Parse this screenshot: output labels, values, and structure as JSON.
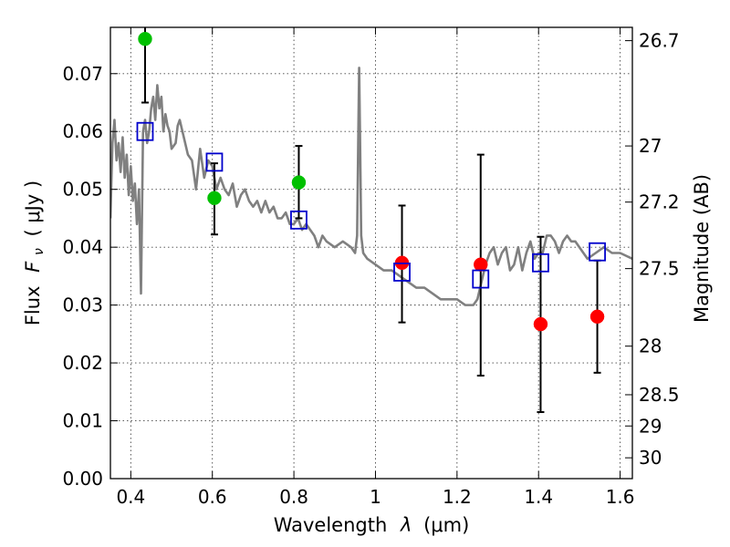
{
  "chart_data": {
    "type": "scatter",
    "xlabel_text": "Wavelength",
    "xlabel_math": "λ",
    "xlabel_unit": "(μm)",
    "ylabel_text": "Flux",
    "ylabel_math": "F",
    "ylabel_sub": "ν",
    "ylabel_unit": "( μJy )",
    "y2label": "Magnitude (AB)",
    "xlim": [
      0.35,
      1.63
    ],
    "ylim": [
      0.0,
      0.078
    ],
    "grid": true,
    "x_ticks": [
      0.4,
      0.6,
      0.8,
      1.0,
      1.2,
      1.4,
      1.6
    ],
    "x_tick_labels": [
      "0.4",
      "0.6",
      "0.8",
      "1",
      "1.2",
      "1.4",
      "1.6"
    ],
    "y_ticks": [
      0.0,
      0.01,
      0.02,
      0.03,
      0.04,
      0.05,
      0.06,
      0.07
    ],
    "y_tick_labels": [
      "0.00",
      "0.01",
      "0.02",
      "0.03",
      "0.04",
      "0.05",
      "0.06",
      "0.07"
    ],
    "y2_ticks": [
      {
        "label": "26.7",
        "flux": 0.0757
      },
      {
        "label": "27",
        "flux": 0.0575
      },
      {
        "label": "27.2",
        "flux": 0.0478
      },
      {
        "label": "27.5",
        "flux": 0.0363
      },
      {
        "label": "28",
        "flux": 0.0229
      },
      {
        "label": "28.5",
        "flux": 0.0145
      },
      {
        "label": "29",
        "flux": 0.0091
      },
      {
        "label": "30",
        "flux": 0.0036
      }
    ],
    "template_spectrum": {
      "color": "#808080",
      "x": [
        0.35,
        0.355,
        0.36,
        0.365,
        0.37,
        0.375,
        0.38,
        0.385,
        0.39,
        0.395,
        0.4,
        0.405,
        0.41,
        0.415,
        0.42,
        0.425,
        0.43,
        0.435,
        0.44,
        0.445,
        0.45,
        0.455,
        0.46,
        0.465,
        0.47,
        0.475,
        0.48,
        0.485,
        0.49,
        0.495,
        0.5,
        0.51,
        0.515,
        0.52,
        0.53,
        0.54,
        0.55,
        0.56,
        0.57,
        0.58,
        0.59,
        0.6,
        0.61,
        0.62,
        0.63,
        0.64,
        0.65,
        0.66,
        0.67,
        0.68,
        0.69,
        0.7,
        0.71,
        0.72,
        0.73,
        0.74,
        0.75,
        0.76,
        0.77,
        0.78,
        0.79,
        0.8,
        0.81,
        0.82,
        0.83,
        0.84,
        0.85,
        0.86,
        0.87,
        0.88,
        0.9,
        0.92,
        0.94,
        0.95,
        0.955,
        0.958,
        0.96,
        0.962,
        0.965,
        0.97,
        0.98,
        1.0,
        1.02,
        1.04,
        1.06,
        1.08,
        1.1,
        1.12,
        1.14,
        1.16,
        1.18,
        1.2,
        1.22,
        1.24,
        1.25,
        1.26,
        1.27,
        1.28,
        1.29,
        1.3,
        1.31,
        1.32,
        1.33,
        1.34,
        1.35,
        1.36,
        1.37,
        1.38,
        1.39,
        1.4,
        1.41,
        1.42,
        1.43,
        1.44,
        1.45,
        1.46,
        1.47,
        1.48,
        1.49,
        1.5,
        1.52,
        1.54,
        1.56,
        1.58,
        1.6,
        1.63
      ],
      "y": [
        0.045,
        0.058,
        0.062,
        0.055,
        0.058,
        0.053,
        0.059,
        0.052,
        0.056,
        0.049,
        0.054,
        0.048,
        0.051,
        0.044,
        0.05,
        0.032,
        0.06,
        0.062,
        0.058,
        0.06,
        0.064,
        0.066,
        0.062,
        0.068,
        0.064,
        0.066,
        0.06,
        0.063,
        0.061,
        0.06,
        0.057,
        0.058,
        0.061,
        0.062,
        0.059,
        0.056,
        0.055,
        0.05,
        0.057,
        0.052,
        0.055,
        0.054,
        0.05,
        0.052,
        0.05,
        0.049,
        0.051,
        0.047,
        0.049,
        0.05,
        0.048,
        0.047,
        0.048,
        0.046,
        0.048,
        0.046,
        0.047,
        0.045,
        0.045,
        0.046,
        0.044,
        0.044,
        0.045,
        0.043,
        0.044,
        0.043,
        0.042,
        0.04,
        0.042,
        0.041,
        0.04,
        0.041,
        0.04,
        0.039,
        0.042,
        0.06,
        0.071,
        0.06,
        0.042,
        0.039,
        0.038,
        0.037,
        0.036,
        0.036,
        0.035,
        0.034,
        0.033,
        0.033,
        0.032,
        0.031,
        0.031,
        0.031,
        0.03,
        0.03,
        0.031,
        0.034,
        0.037,
        0.039,
        0.04,
        0.037,
        0.039,
        0.04,
        0.036,
        0.037,
        0.04,
        0.036,
        0.039,
        0.041,
        0.038,
        0.039,
        0.039,
        0.042,
        0.042,
        0.041,
        0.039,
        0.041,
        0.042,
        0.041,
        0.041,
        0.04,
        0.038,
        0.039,
        0.04,
        0.039,
        0.039,
        0.038
      ]
    },
    "series": [
      {
        "marker": "circle",
        "color": "#00c000",
        "x": [
          0.435,
          0.605,
          0.812
        ],
        "y": [
          0.076,
          0.0485,
          0.0512
        ],
        "yerr_low": [
          0.065,
          0.0422,
          0.045
        ],
        "yerr_high": [
          0.0785,
          0.0545,
          0.0575
        ]
      },
      {
        "marker": "circle",
        "color": "#ff0000",
        "x": [
          1.065,
          1.258,
          1.405,
          1.544
        ],
        "y": [
          0.0373,
          0.037,
          0.0267,
          0.028
        ],
        "yerr_low": [
          0.027,
          0.0178,
          0.0115,
          0.0183
        ],
        "yerr_high": [
          0.0472,
          0.056,
          0.0418,
          0.0377
        ]
      },
      {
        "marker": "square-open",
        "color": "#0000cc",
        "x": [
          0.435,
          0.605,
          0.812,
          1.065,
          1.258,
          1.405,
          1.544
        ],
        "y": [
          0.06,
          0.0547,
          0.0447,
          0.0357,
          0.0345,
          0.0373,
          0.0392
        ]
      }
    ]
  }
}
